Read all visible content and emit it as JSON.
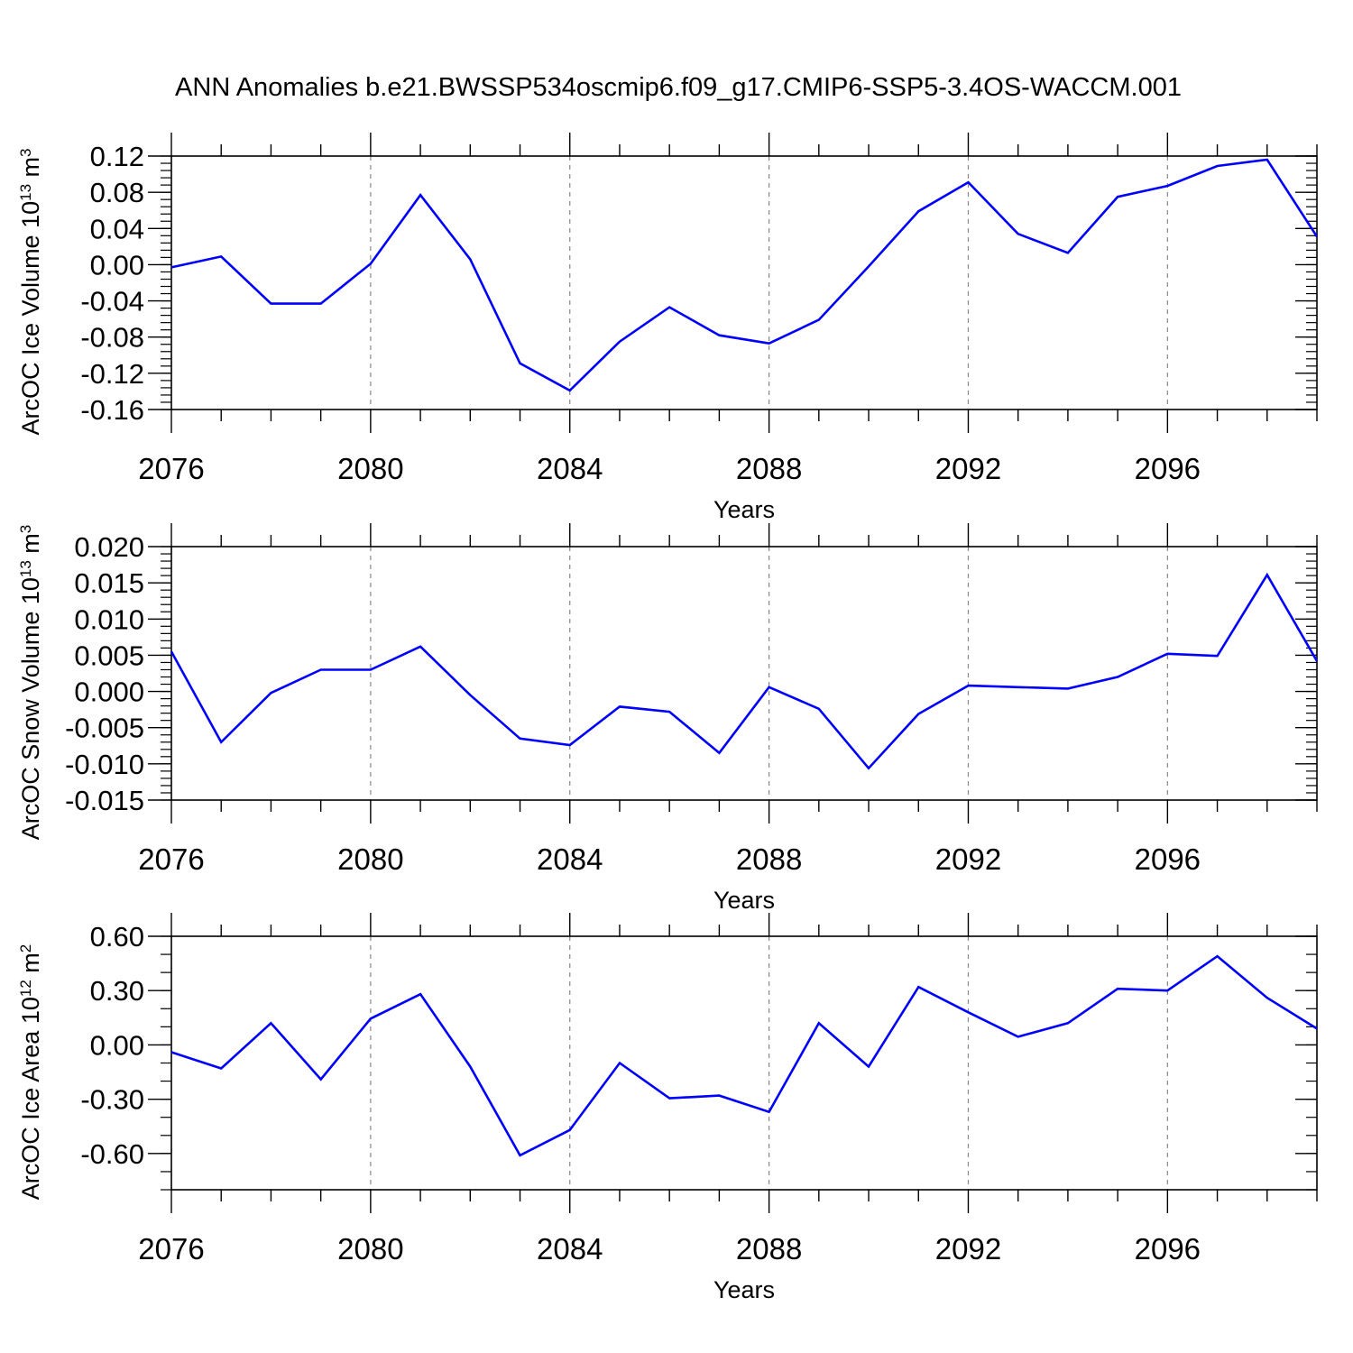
{
  "title": "ANN Anomalies b.e21.BWSSP534oscmip6.f09_g17.CMIP6-SSP5-3.4OS-WACCM.001",
  "line_color": "#0000ff",
  "chart_data": [
    {
      "type": "line",
      "ylabel": "ArcOC Ice Volume 10",
      "ylabel_sup": "13",
      "ylabel_unit": " m",
      "ylabel_unit_sup": "3",
      "xlabel": "Years",
      "xlim": [
        2076,
        2099
      ],
      "ylim": [
        -0.16,
        0.12
      ],
      "xticks": [
        2076,
        2080,
        2084,
        2088,
        2092,
        2096
      ],
      "xtick_labels": [
        "2076",
        "2080",
        "2084",
        "2088",
        "2092",
        "2096"
      ],
      "yticks": [
        -0.16,
        -0.12,
        -0.08,
        -0.04,
        0.0,
        0.04,
        0.08,
        0.12
      ],
      "ytick_labels": [
        "-0.16",
        "-0.12",
        "-0.08",
        "-0.04",
        "0.00",
        "0.04",
        "0.08",
        "0.12"
      ],
      "y_minor_step": 0.008,
      "x": [
        2076,
        2077,
        2078,
        2079,
        2080,
        2081,
        2082,
        2083,
        2084,
        2085,
        2086,
        2087,
        2088,
        2089,
        2090,
        2091,
        2092,
        2093,
        2094,
        2095,
        2096,
        2097,
        2098,
        2099
      ],
      "values": [
        -0.003,
        0.009,
        -0.043,
        -0.043,
        0.001,
        0.077,
        0.006,
        -0.109,
        -0.139,
        -0.085,
        -0.047,
        -0.078,
        -0.087,
        -0.061,
        -0.002,
        0.059,
        0.091,
        0.034,
        0.013,
        0.075,
        0.087,
        0.109,
        0.116,
        0.031
      ]
    },
    {
      "type": "line",
      "ylabel": "ArcOC Snow Volume 10",
      "ylabel_sup": "13",
      "ylabel_unit": " m",
      "ylabel_unit_sup": "3",
      "xlabel": "Years",
      "xlim": [
        2076,
        2099
      ],
      "ylim": [
        -0.015,
        0.02
      ],
      "xticks": [
        2076,
        2080,
        2084,
        2088,
        2092,
        2096
      ],
      "xtick_labels": [
        "2076",
        "2080",
        "2084",
        "2088",
        "2092",
        "2096"
      ],
      "yticks": [
        -0.015,
        -0.01,
        -0.005,
        0.0,
        0.005,
        0.01,
        0.015,
        0.02
      ],
      "ytick_labels": [
        "-0.015",
        "-0.010",
        "-0.005",
        "0.000",
        "0.005",
        "0.010",
        "0.015",
        "0.020"
      ],
      "y_minor_step": 0.001,
      "x": [
        2076,
        2077,
        2078,
        2079,
        2080,
        2081,
        2082,
        2083,
        2084,
        2085,
        2086,
        2087,
        2088,
        2089,
        2090,
        2091,
        2092,
        2093,
        2094,
        2095,
        2096,
        2097,
        2098,
        2099
      ],
      "values": [
        0.0055,
        -0.007,
        -0.0002,
        0.003,
        0.003,
        0.0062,
        -0.0005,
        -0.0065,
        -0.0074,
        -0.0021,
        -0.0028,
        -0.0085,
        0.0006,
        -0.0024,
        -0.0106,
        -0.0031,
        0.0008,
        0.0006,
        0.0004,
        0.002,
        0.0052,
        0.0049,
        0.0161,
        0.0042
      ]
    },
    {
      "type": "line",
      "ylabel": "ArcOC Ice Area 10",
      "ylabel_sup": "12",
      "ylabel_unit": " m",
      "ylabel_unit_sup": "2",
      "xlabel": "Years",
      "xlim": [
        2076,
        2099
      ],
      "ylim": [
        -0.8,
        0.6
      ],
      "xticks": [
        2076,
        2080,
        2084,
        2088,
        2092,
        2096
      ],
      "xtick_labels": [
        "2076",
        "2080",
        "2084",
        "2088",
        "2092",
        "2096"
      ],
      "yticks": [
        -0.6,
        -0.3,
        0.0,
        0.3,
        0.6
      ],
      "ytick_labels": [
        "-0.60",
        "-0.30",
        "0.00",
        "0.30",
        "0.60"
      ],
      "y_minor_step": 0.1,
      "x": [
        2076,
        2077,
        2078,
        2079,
        2080,
        2081,
        2082,
        2083,
        2084,
        2085,
        2086,
        2087,
        2088,
        2089,
        2090,
        2091,
        2092,
        2093,
        2094,
        2095,
        2096,
        2097,
        2098,
        2099
      ],
      "values": [
        -0.04,
        -0.13,
        0.12,
        -0.19,
        0.145,
        0.28,
        -0.12,
        -0.61,
        -0.47,
        -0.1,
        -0.295,
        -0.28,
        -0.37,
        0.12,
        -0.12,
        0.32,
        0.18,
        0.045,
        0.12,
        0.31,
        0.3,
        0.49,
        0.26,
        0.09
      ]
    }
  ]
}
